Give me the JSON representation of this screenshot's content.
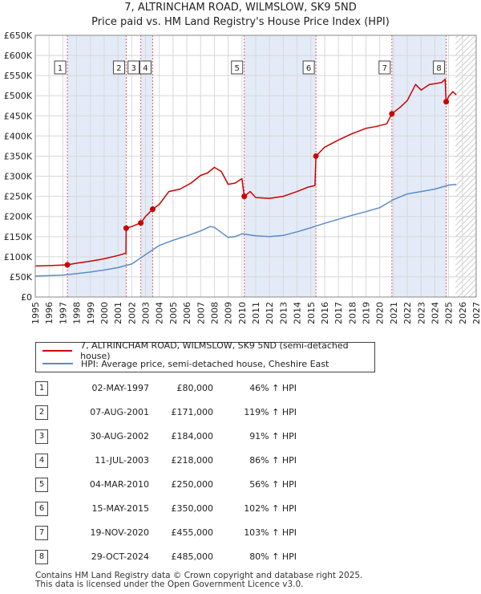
{
  "title": {
    "line1": "7, ALTRINCHAM ROAD, WILMSLOW, SK9 5ND",
    "line2": "Price paid vs. HM Land Registry's House Price Index (HPI)"
  },
  "colors": {
    "property_line": "#cc0000",
    "hpi_line": "#5b8bc9",
    "shade": "#e3ebf8",
    "vline": "#e06060",
    "grid": "#d8d8d8",
    "hatch": "#bbbbbb"
  },
  "chart_data": {
    "type": "line",
    "title": "Price paid vs. HM Land Registry's House Price Index (HPI)",
    "xlim": [
      1995,
      2027
    ],
    "ylim": [
      0,
      650000
    ],
    "y_ticks": [
      0,
      50000,
      100000,
      150000,
      200000,
      250000,
      300000,
      350000,
      400000,
      450000,
      500000,
      550000,
      600000,
      650000
    ],
    "y_tick_labels": [
      "£0",
      "£50K",
      "£100K",
      "£150K",
      "£200K",
      "£250K",
      "£300K",
      "£350K",
      "£400K",
      "£450K",
      "£500K",
      "£550K",
      "£600K",
      "£650K"
    ],
    "x_ticks": [
      1995,
      1996,
      1997,
      1998,
      1999,
      2000,
      2001,
      2002,
      2003,
      2004,
      2005,
      2006,
      2007,
      2008,
      2009,
      2010,
      2011,
      2012,
      2013,
      2014,
      2015,
      2016,
      2017,
      2018,
      2019,
      2020,
      2021,
      2022,
      2023,
      2024,
      2025,
      2026,
      2027
    ],
    "x_tick_labels": [
      "1995",
      "1996",
      "1997",
      "1998",
      "1999",
      "2000",
      "2001",
      "2002",
      "2003",
      "2004",
      "2005",
      "2006",
      "2007",
      "2008",
      "2009",
      "2010",
      "2011",
      "2012",
      "2013",
      "2014",
      "2015",
      "2016",
      "2017",
      "2018",
      "2019",
      "2020",
      "2021",
      "2022",
      "2023",
      "2024",
      "2025",
      "2026",
      "2027"
    ],
    "forecast_start": 2025.5,
    "series": [
      {
        "name": "7, ALTRINCHAM ROAD, WILMSLOW, SK9 5ND (semi-detached house)",
        "color": "#cc0000",
        "points": [
          [
            1995.0,
            77000
          ],
          [
            1996.0,
            78000
          ],
          [
            1996.8,
            79000
          ],
          [
            1997.33,
            80000
          ],
          [
            1998.0,
            84000
          ],
          [
            1999.0,
            89000
          ],
          [
            2000.0,
            95000
          ],
          [
            2001.0,
            103000
          ],
          [
            2001.5,
            108000
          ],
          [
            2001.58,
            108000
          ],
          [
            2001.6,
            171000
          ],
          [
            2002.0,
            175000
          ],
          [
            2002.5,
            182000
          ],
          [
            2002.66,
            184000
          ],
          [
            2003.0,
            200000
          ],
          [
            2003.52,
            218000
          ],
          [
            2004.0,
            230000
          ],
          [
            2004.7,
            262000
          ],
          [
            2005.5,
            268000
          ],
          [
            2006.3,
            283000
          ],
          [
            2007.0,
            302000
          ],
          [
            2007.5,
            308000
          ],
          [
            2008.0,
            322000
          ],
          [
            2008.5,
            312000
          ],
          [
            2009.0,
            280000
          ],
          [
            2009.5,
            283000
          ],
          [
            2010.0,
            294000
          ],
          [
            2010.17,
            250000
          ],
          [
            2010.6,
            262000
          ],
          [
            2011.0,
            247000
          ],
          [
            2012.0,
            245000
          ],
          [
            2013.0,
            250000
          ],
          [
            2014.0,
            262000
          ],
          [
            2014.8,
            273000
          ],
          [
            2015.3,
            277000
          ],
          [
            2015.37,
            350000
          ],
          [
            2016.0,
            372000
          ],
          [
            2017.0,
            390000
          ],
          [
            2018.0,
            406000
          ],
          [
            2019.0,
            419000
          ],
          [
            2019.8,
            424000
          ],
          [
            2020.5,
            430000
          ],
          [
            2020.88,
            455000
          ],
          [
            2021.5,
            472000
          ],
          [
            2022.0,
            488000
          ],
          [
            2022.6,
            528000
          ],
          [
            2023.0,
            514000
          ],
          [
            2023.6,
            528000
          ],
          [
            2024.0,
            530000
          ],
          [
            2024.5,
            533000
          ],
          [
            2024.75,
            541000
          ],
          [
            2024.82,
            485000
          ],
          [
            2025.0,
            498000
          ],
          [
            2025.3,
            510000
          ],
          [
            2025.55,
            502000
          ]
        ]
      },
      {
        "name": "HPI: Average price, semi-detached house, Cheshire East",
        "color": "#5b8bc9",
        "points": [
          [
            1995.0,
            52000
          ],
          [
            1996.0,
            53000
          ],
          [
            1997.0,
            54500
          ],
          [
            1998.0,
            58000
          ],
          [
            1999.0,
            62000
          ],
          [
            2000.0,
            67000
          ],
          [
            2001.0,
            73000
          ],
          [
            2002.0,
            82000
          ],
          [
            2003.0,
            105000
          ],
          [
            2004.0,
            128000
          ],
          [
            2005.0,
            141000
          ],
          [
            2006.0,
            152000
          ],
          [
            2007.0,
            164000
          ],
          [
            2007.7,
            175000
          ],
          [
            2008.0,
            173000
          ],
          [
            2009.0,
            148000
          ],
          [
            2009.5,
            150000
          ],
          [
            2010.0,
            157000
          ],
          [
            2011.0,
            152000
          ],
          [
            2012.0,
            150000
          ],
          [
            2013.0,
            153000
          ],
          [
            2014.0,
            162000
          ],
          [
            2015.0,
            172000
          ],
          [
            2016.0,
            183000
          ],
          [
            2017.0,
            193000
          ],
          [
            2018.0,
            203000
          ],
          [
            2019.0,
            212000
          ],
          [
            2020.0,
            222000
          ],
          [
            2021.0,
            242000
          ],
          [
            2022.0,
            256000
          ],
          [
            2023.0,
            262000
          ],
          [
            2024.0,
            268000
          ],
          [
            2025.0,
            278000
          ],
          [
            2025.55,
            280000
          ]
        ]
      }
    ],
    "sales": [
      {
        "n": "1",
        "x": 1997.33,
        "y": 80000
      },
      {
        "n": "2",
        "x": 2001.6,
        "y": 171000
      },
      {
        "n": "3",
        "x": 2002.66,
        "y": 184000
      },
      {
        "n": "4",
        "x": 2003.52,
        "y": 218000
      },
      {
        "n": "5",
        "x": 2010.17,
        "y": 250000
      },
      {
        "n": "6",
        "x": 2015.37,
        "y": 350000
      },
      {
        "n": "7",
        "x": 2020.88,
        "y": 455000
      },
      {
        "n": "8",
        "x": 2024.82,
        "y": 485000
      }
    ]
  },
  "legend": {
    "property": "7, ALTRINCHAM ROAD, WILMSLOW, SK9 5ND (semi-detached house)",
    "hpi": "HPI: Average price, semi-detached house, Cheshire East"
  },
  "sales_table": [
    {
      "n": "1",
      "date": "02-MAY-1997",
      "price": "£80,000",
      "hpi": "46% ↑ HPI"
    },
    {
      "n": "2",
      "date": "07-AUG-2001",
      "price": "£171,000",
      "hpi": "119% ↑ HPI"
    },
    {
      "n": "3",
      "date": "30-AUG-2002",
      "price": "£184,000",
      "hpi": "91% ↑ HPI"
    },
    {
      "n": "4",
      "date": "11-JUL-2003",
      "price": "£218,000",
      "hpi": "86% ↑ HPI"
    },
    {
      "n": "5",
      "date": "04-MAR-2010",
      "price": "£250,000",
      "hpi": "56% ↑ HPI"
    },
    {
      "n": "6",
      "date": "15-MAY-2015",
      "price": "£350,000",
      "hpi": "102% ↑ HPI"
    },
    {
      "n": "7",
      "date": "19-NOV-2020",
      "price": "£455,000",
      "hpi": "103% ↑ HPI"
    },
    {
      "n": "8",
      "date": "29-OCT-2024",
      "price": "£485,000",
      "hpi": "80% ↑ HPI"
    }
  ],
  "footer": {
    "line1": "Contains HM Land Registry data © Crown copyright and database right 2025.",
    "line2": "This data is licensed under the Open Government Licence v3.0."
  }
}
